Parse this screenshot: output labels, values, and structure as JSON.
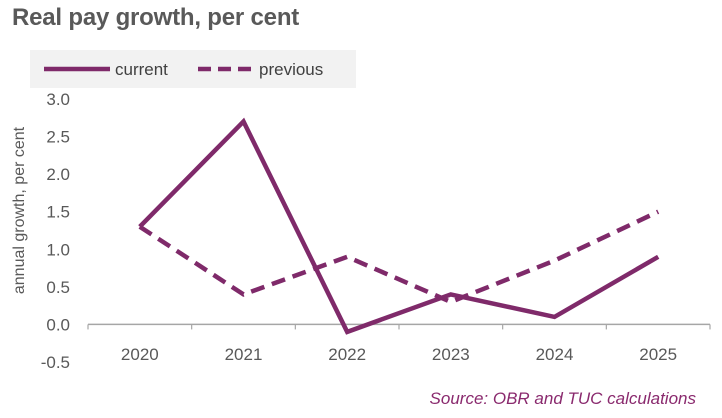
{
  "chart_data": {
    "type": "line",
    "title": "Real pay growth, per cent",
    "xlabel": "",
    "ylabel": "annual growth, per cent",
    "categories": [
      "2020",
      "2021",
      "2022",
      "2023",
      "2024",
      "2025"
    ],
    "series": [
      {
        "name": "current",
        "values": [
          1.3,
          2.7,
          -0.1,
          0.4,
          0.1,
          0.9
        ],
        "color": "#7f2a6a",
        "style": "solid"
      },
      {
        "name": "previous",
        "values": [
          1.3,
          0.4,
          0.9,
          0.3,
          0.85,
          1.5
        ],
        "color": "#7f2a6a",
        "style": "dashed"
      }
    ],
    "ylim": [
      -0.5,
      3.0
    ],
    "yticks": [
      "3.0",
      "2.5",
      "2.0",
      "1.5",
      "1.0",
      "0.5",
      "0.0",
      "-0.5"
    ],
    "ytick_values": [
      3.0,
      2.5,
      2.0,
      1.5,
      1.0,
      0.5,
      0.0,
      -0.5
    ],
    "grid": false,
    "legend_position": "top-left",
    "source": "Source: OBR and TUC calculations"
  },
  "colors": {
    "series": "#7f2a6a",
    "legend_background": "#f2f2f2",
    "axis": "#a6a6a6",
    "source_text": "#8a2a6e"
  }
}
